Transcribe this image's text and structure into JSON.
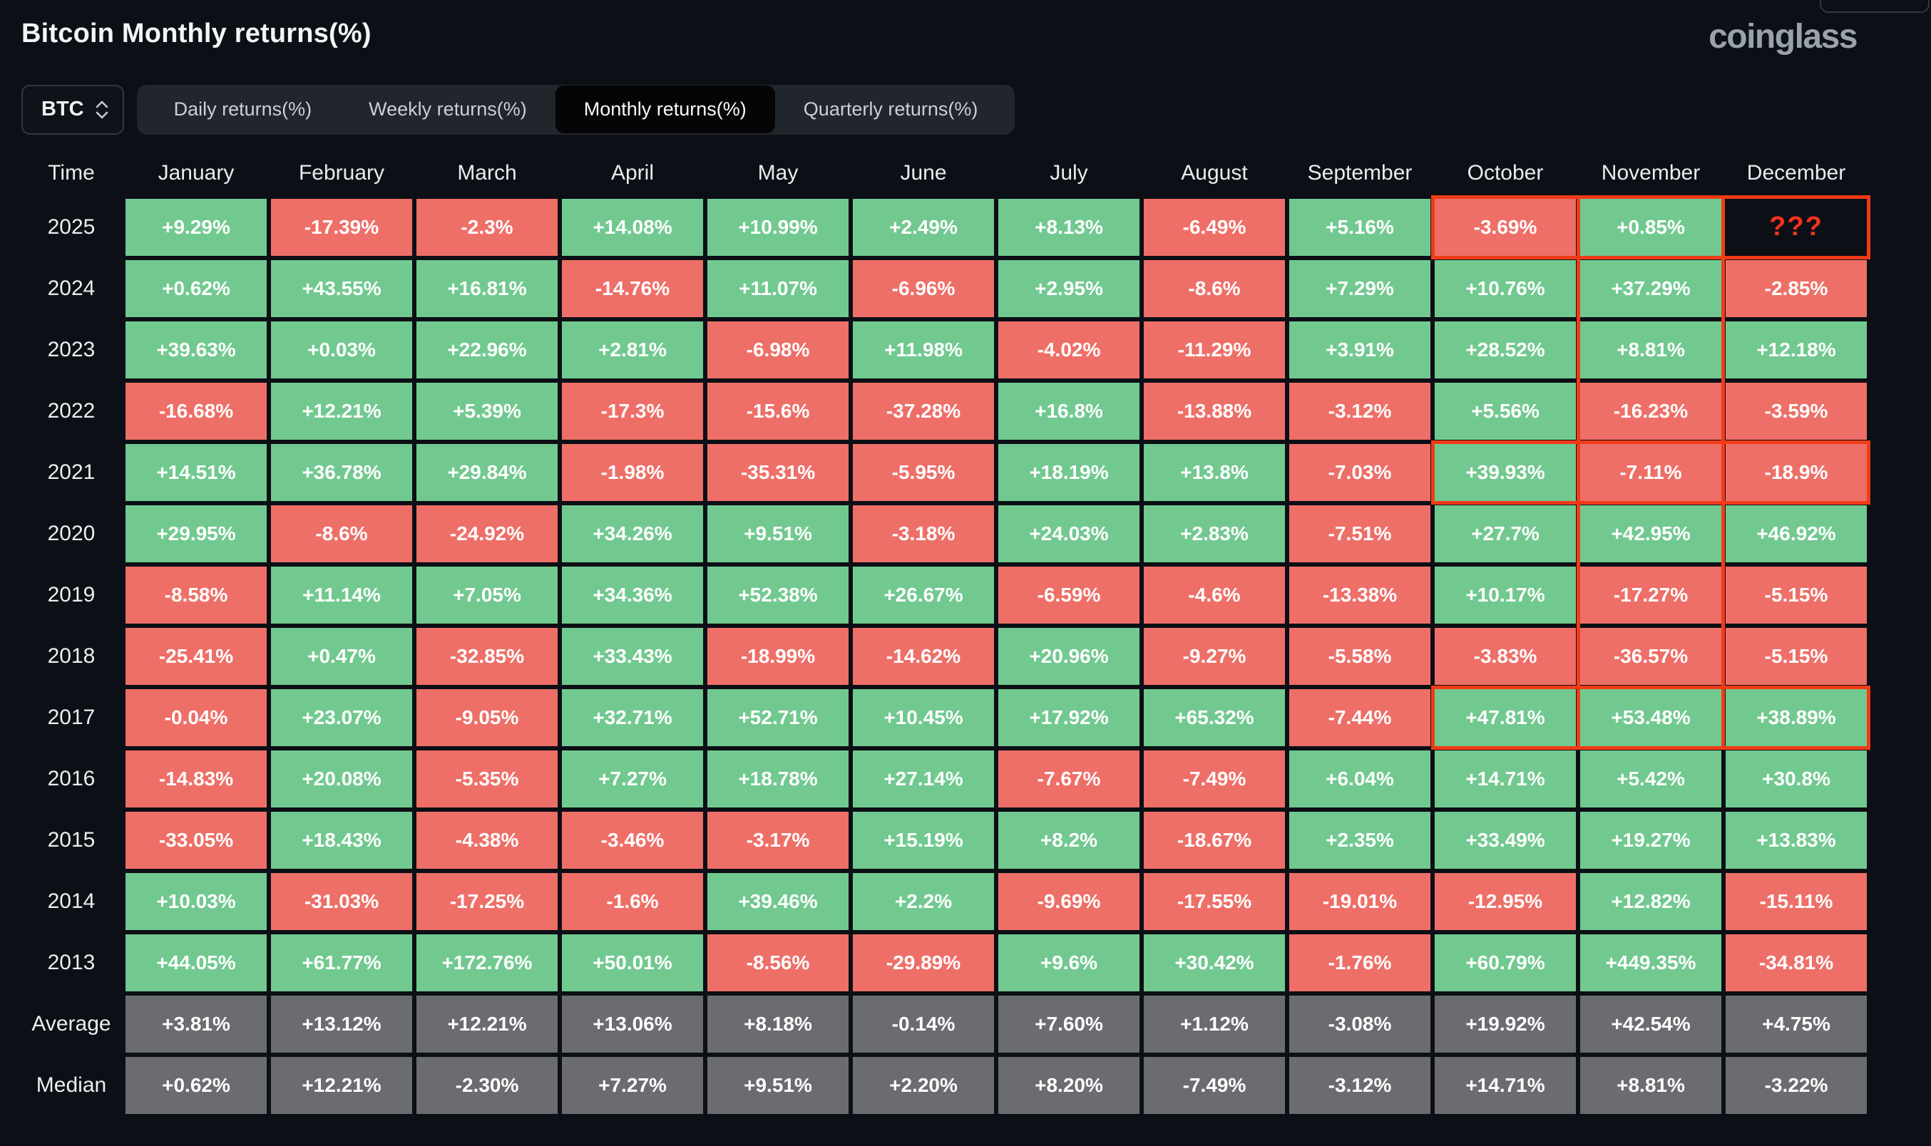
{
  "page": {
    "title": "Bitcoin Monthly returns(%)",
    "brand": "coinglass"
  },
  "controls": {
    "asset": "BTC",
    "tabs": [
      "Daily returns(%)",
      "Weekly returns(%)",
      "Monthly returns(%)",
      "Quarterly returns(%)"
    ],
    "active_tab": "Monthly returns(%)"
  },
  "chart_data": {
    "type": "heatmap",
    "title": "Bitcoin Monthly returns(%)",
    "columns": [
      "January",
      "February",
      "March",
      "April",
      "May",
      "June",
      "July",
      "August",
      "September",
      "October",
      "November",
      "December"
    ],
    "time_header": "Time",
    "rows": [
      {
        "label": "2025",
        "type": "year",
        "cells": [
          {
            "v": "+9.29%",
            "c": "g"
          },
          {
            "v": "-17.39%",
            "c": "r"
          },
          {
            "v": "-2.3%",
            "c": "r"
          },
          {
            "v": "+14.08%",
            "c": "g"
          },
          {
            "v": "+10.99%",
            "c": "g"
          },
          {
            "v": "+2.49%",
            "c": "g"
          },
          {
            "v": "+8.13%",
            "c": "g"
          },
          {
            "v": "-6.49%",
            "c": "r"
          },
          {
            "v": "+5.16%",
            "c": "g"
          },
          {
            "v": "-3.69%",
            "c": "r"
          },
          {
            "v": "+0.85%",
            "c": "g"
          },
          {
            "v": "???",
            "c": "k"
          }
        ]
      },
      {
        "label": "2024",
        "type": "year",
        "cells": [
          {
            "v": "+0.62%",
            "c": "g"
          },
          {
            "v": "+43.55%",
            "c": "g"
          },
          {
            "v": "+16.81%",
            "c": "g"
          },
          {
            "v": "-14.76%",
            "c": "r"
          },
          {
            "v": "+11.07%",
            "c": "g"
          },
          {
            "v": "-6.96%",
            "c": "r"
          },
          {
            "v": "+2.95%",
            "c": "g"
          },
          {
            "v": "-8.6%",
            "c": "r"
          },
          {
            "v": "+7.29%",
            "c": "g"
          },
          {
            "v": "+10.76%",
            "c": "g"
          },
          {
            "v": "+37.29%",
            "c": "g"
          },
          {
            "v": "-2.85%",
            "c": "r"
          }
        ]
      },
      {
        "label": "2023",
        "type": "year",
        "cells": [
          {
            "v": "+39.63%",
            "c": "g"
          },
          {
            "v": "+0.03%",
            "c": "g"
          },
          {
            "v": "+22.96%",
            "c": "g"
          },
          {
            "v": "+2.81%",
            "c": "g"
          },
          {
            "v": "-6.98%",
            "c": "r"
          },
          {
            "v": "+11.98%",
            "c": "g"
          },
          {
            "v": "-4.02%",
            "c": "r"
          },
          {
            "v": "-11.29%",
            "c": "r"
          },
          {
            "v": "+3.91%",
            "c": "g"
          },
          {
            "v": "+28.52%",
            "c": "g"
          },
          {
            "v": "+8.81%",
            "c": "g"
          },
          {
            "v": "+12.18%",
            "c": "g"
          }
        ]
      },
      {
        "label": "2022",
        "type": "year",
        "cells": [
          {
            "v": "-16.68%",
            "c": "r"
          },
          {
            "v": "+12.21%",
            "c": "g"
          },
          {
            "v": "+5.39%",
            "c": "g"
          },
          {
            "v": "-17.3%",
            "c": "r"
          },
          {
            "v": "-15.6%",
            "c": "r"
          },
          {
            "v": "-37.28%",
            "c": "r"
          },
          {
            "v": "+16.8%",
            "c": "g"
          },
          {
            "v": "-13.88%",
            "c": "r"
          },
          {
            "v": "-3.12%",
            "c": "r"
          },
          {
            "v": "+5.56%",
            "c": "g"
          },
          {
            "v": "-16.23%",
            "c": "r"
          },
          {
            "v": "-3.59%",
            "c": "r"
          }
        ]
      },
      {
        "label": "2021",
        "type": "year",
        "cells": [
          {
            "v": "+14.51%",
            "c": "g"
          },
          {
            "v": "+36.78%",
            "c": "g"
          },
          {
            "v": "+29.84%",
            "c": "g"
          },
          {
            "v": "-1.98%",
            "c": "r"
          },
          {
            "v": "-35.31%",
            "c": "r"
          },
          {
            "v": "-5.95%",
            "c": "r"
          },
          {
            "v": "+18.19%",
            "c": "g"
          },
          {
            "v": "+13.8%",
            "c": "g"
          },
          {
            "v": "-7.03%",
            "c": "r"
          },
          {
            "v": "+39.93%",
            "c": "g"
          },
          {
            "v": "-7.11%",
            "c": "r"
          },
          {
            "v": "-18.9%",
            "c": "r"
          }
        ]
      },
      {
        "label": "2020",
        "type": "year",
        "cells": [
          {
            "v": "+29.95%",
            "c": "g"
          },
          {
            "v": "-8.6%",
            "c": "r"
          },
          {
            "v": "-24.92%",
            "c": "r"
          },
          {
            "v": "+34.26%",
            "c": "g"
          },
          {
            "v": "+9.51%",
            "c": "g"
          },
          {
            "v": "-3.18%",
            "c": "r"
          },
          {
            "v": "+24.03%",
            "c": "g"
          },
          {
            "v": "+2.83%",
            "c": "g"
          },
          {
            "v": "-7.51%",
            "c": "r"
          },
          {
            "v": "+27.7%",
            "c": "g"
          },
          {
            "v": "+42.95%",
            "c": "g"
          },
          {
            "v": "+46.92%",
            "c": "g"
          }
        ]
      },
      {
        "label": "2019",
        "type": "year",
        "cells": [
          {
            "v": "-8.58%",
            "c": "r"
          },
          {
            "v": "+11.14%",
            "c": "g"
          },
          {
            "v": "+7.05%",
            "c": "g"
          },
          {
            "v": "+34.36%",
            "c": "g"
          },
          {
            "v": "+52.38%",
            "c": "g"
          },
          {
            "v": "+26.67%",
            "c": "g"
          },
          {
            "v": "-6.59%",
            "c": "r"
          },
          {
            "v": "-4.6%",
            "c": "r"
          },
          {
            "v": "-13.38%",
            "c": "r"
          },
          {
            "v": "+10.17%",
            "c": "g"
          },
          {
            "v": "-17.27%",
            "c": "r"
          },
          {
            "v": "-5.15%",
            "c": "r"
          }
        ]
      },
      {
        "label": "2018",
        "type": "year",
        "cells": [
          {
            "v": "-25.41%",
            "c": "r"
          },
          {
            "v": "+0.47%",
            "c": "g"
          },
          {
            "v": "-32.85%",
            "c": "r"
          },
          {
            "v": "+33.43%",
            "c": "g"
          },
          {
            "v": "-18.99%",
            "c": "r"
          },
          {
            "v": "-14.62%",
            "c": "r"
          },
          {
            "v": "+20.96%",
            "c": "g"
          },
          {
            "v": "-9.27%",
            "c": "r"
          },
          {
            "v": "-5.58%",
            "c": "r"
          },
          {
            "v": "-3.83%",
            "c": "r"
          },
          {
            "v": "-36.57%",
            "c": "r"
          },
          {
            "v": "-5.15%",
            "c": "r"
          }
        ]
      },
      {
        "label": "2017",
        "type": "year",
        "cells": [
          {
            "v": "-0.04%",
            "c": "r"
          },
          {
            "v": "+23.07%",
            "c": "g"
          },
          {
            "v": "-9.05%",
            "c": "r"
          },
          {
            "v": "+32.71%",
            "c": "g"
          },
          {
            "v": "+52.71%",
            "c": "g"
          },
          {
            "v": "+10.45%",
            "c": "g"
          },
          {
            "v": "+17.92%",
            "c": "g"
          },
          {
            "v": "+65.32%",
            "c": "g"
          },
          {
            "v": "-7.44%",
            "c": "r"
          },
          {
            "v": "+47.81%",
            "c": "g"
          },
          {
            "v": "+53.48%",
            "c": "g"
          },
          {
            "v": "+38.89%",
            "c": "g"
          }
        ]
      },
      {
        "label": "2016",
        "type": "year",
        "cells": [
          {
            "v": "-14.83%",
            "c": "r"
          },
          {
            "v": "+20.08%",
            "c": "g"
          },
          {
            "v": "-5.35%",
            "c": "r"
          },
          {
            "v": "+7.27%",
            "c": "g"
          },
          {
            "v": "+18.78%",
            "c": "g"
          },
          {
            "v": "+27.14%",
            "c": "g"
          },
          {
            "v": "-7.67%",
            "c": "r"
          },
          {
            "v": "-7.49%",
            "c": "r"
          },
          {
            "v": "+6.04%",
            "c": "g"
          },
          {
            "v": "+14.71%",
            "c": "g"
          },
          {
            "v": "+5.42%",
            "c": "g"
          },
          {
            "v": "+30.8%",
            "c": "g"
          }
        ]
      },
      {
        "label": "2015",
        "type": "year",
        "cells": [
          {
            "v": "-33.05%",
            "c": "r"
          },
          {
            "v": "+18.43%",
            "c": "g"
          },
          {
            "v": "-4.38%",
            "c": "r"
          },
          {
            "v": "-3.46%",
            "c": "r"
          },
          {
            "v": "-3.17%",
            "c": "r"
          },
          {
            "v": "+15.19%",
            "c": "g"
          },
          {
            "v": "+8.2%",
            "c": "g"
          },
          {
            "v": "-18.67%",
            "c": "r"
          },
          {
            "v": "+2.35%",
            "c": "g"
          },
          {
            "v": "+33.49%",
            "c": "g"
          },
          {
            "v": "+19.27%",
            "c": "g"
          },
          {
            "v": "+13.83%",
            "c": "g"
          }
        ]
      },
      {
        "label": "2014",
        "type": "year",
        "cells": [
          {
            "v": "+10.03%",
            "c": "g"
          },
          {
            "v": "-31.03%",
            "c": "r"
          },
          {
            "v": "-17.25%",
            "c": "r"
          },
          {
            "v": "-1.6%",
            "c": "r"
          },
          {
            "v": "+39.46%",
            "c": "g"
          },
          {
            "v": "+2.2%",
            "c": "g"
          },
          {
            "v": "-9.69%",
            "c": "r"
          },
          {
            "v": "-17.55%",
            "c": "r"
          },
          {
            "v": "-19.01%",
            "c": "r"
          },
          {
            "v": "-12.95%",
            "c": "r"
          },
          {
            "v": "+12.82%",
            "c": "g"
          },
          {
            "v": "-15.11%",
            "c": "r"
          }
        ]
      },
      {
        "label": "2013",
        "type": "year",
        "cells": [
          {
            "v": "+44.05%",
            "c": "g"
          },
          {
            "v": "+61.77%",
            "c": "g"
          },
          {
            "v": "+172.76%",
            "c": "g"
          },
          {
            "v": "+50.01%",
            "c": "g"
          },
          {
            "v": "-8.56%",
            "c": "r"
          },
          {
            "v": "-29.89%",
            "c": "r"
          },
          {
            "v": "+9.6%",
            "c": "g"
          },
          {
            "v": "+30.42%",
            "c": "g"
          },
          {
            "v": "-1.76%",
            "c": "r"
          },
          {
            "v": "+60.79%",
            "c": "g"
          },
          {
            "v": "+449.35%",
            "c": "g"
          },
          {
            "v": "-34.81%",
            "c": "r"
          }
        ]
      },
      {
        "label": "Average",
        "type": "summary",
        "cells": [
          {
            "v": "+3.81%",
            "c": "s"
          },
          {
            "v": "+13.12%",
            "c": "s"
          },
          {
            "v": "+12.21%",
            "c": "s"
          },
          {
            "v": "+13.06%",
            "c": "s"
          },
          {
            "v": "+8.18%",
            "c": "s"
          },
          {
            "v": "-0.14%",
            "c": "s"
          },
          {
            "v": "+7.60%",
            "c": "s"
          },
          {
            "v": "+1.12%",
            "c": "s"
          },
          {
            "v": "-3.08%",
            "c": "s"
          },
          {
            "v": "+19.92%",
            "c": "s"
          },
          {
            "v": "+42.54%",
            "c": "s"
          },
          {
            "v": "+4.75%",
            "c": "s"
          }
        ]
      },
      {
        "label": "Median",
        "type": "summary",
        "cells": [
          {
            "v": "+0.62%",
            "c": "s"
          },
          {
            "v": "+12.21%",
            "c": "s"
          },
          {
            "v": "-2.30%",
            "c": "s"
          },
          {
            "v": "+7.27%",
            "c": "s"
          },
          {
            "v": "+9.51%",
            "c": "s"
          },
          {
            "v": "+2.20%",
            "c": "s"
          },
          {
            "v": "+8.20%",
            "c": "s"
          },
          {
            "v": "-7.49%",
            "c": "s"
          },
          {
            "v": "-3.12%",
            "c": "s"
          },
          {
            "v": "+14.71%",
            "c": "s"
          },
          {
            "v": "+8.81%",
            "c": "s"
          },
          {
            "v": "-3.22%",
            "c": "s"
          }
        ]
      }
    ],
    "legend_colors": {
      "positive": "#72c990",
      "negative": "#ee6f68",
      "summary": "#6a6c70",
      "unknown_bg": "#0c0f15",
      "unknown_text": "#f5321c"
    }
  },
  "highlights": {
    "color": "#f23b17",
    "boxes": [
      {
        "row": "2025",
        "from_col": "October",
        "to_col": "December"
      },
      {
        "row": "2021",
        "from_col": "October",
        "to_col": "December"
      },
      {
        "row": "2017",
        "from_col": "October",
        "to_col": "December"
      }
    ],
    "column_strip": {
      "col": "November",
      "from_row": "2025",
      "to_row": "2017"
    }
  }
}
